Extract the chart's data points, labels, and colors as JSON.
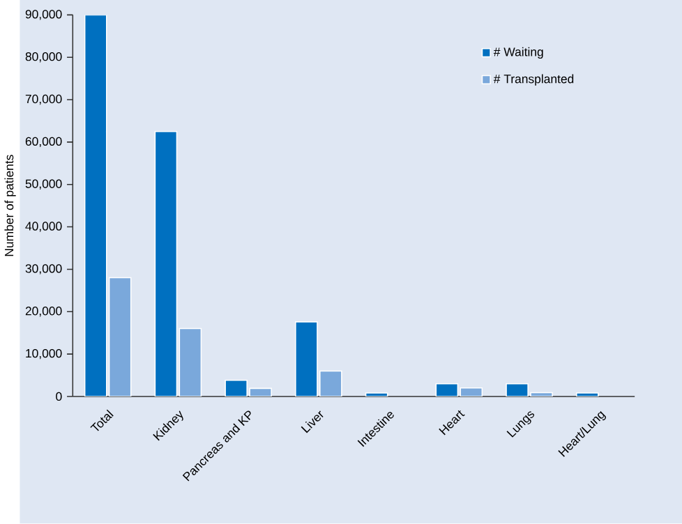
{
  "chart_data": {
    "type": "bar",
    "ylabel": "Number of patients",
    "categories": [
      "Total",
      "Kidney",
      "Pancreas and KP",
      "Liver",
      "Intestine",
      "Heart",
      "Lungs",
      "Heart/Lung"
    ],
    "series": [
      {
        "name": "# Waiting",
        "color": "#0070c0",
        "values": [
          90000,
          62500,
          3800,
          17600,
          800,
          3000,
          3000,
          800
        ]
      },
      {
        "name": "# Transplanted",
        "color": "#7aa8db",
        "values": [
          28000,
          16000,
          1900,
          6000,
          null,
          2000,
          900,
          null
        ]
      }
    ],
    "ylim": [
      0,
      90000
    ],
    "yticks": [
      {
        "value": 0,
        "label": "0"
      },
      {
        "value": 10000,
        "label": "10,000"
      },
      {
        "value": 20000,
        "label": "20,000"
      },
      {
        "value": 30000,
        "label": "30,000"
      },
      {
        "value": 40000,
        "label": "40,000"
      },
      {
        "value": 50000,
        "label": "50,000"
      },
      {
        "value": 60000,
        "label": "60,000"
      },
      {
        "value": 70000,
        "label": "70,000"
      },
      {
        "value": 80000,
        "label": "80,000"
      },
      {
        "value": 90000,
        "label": "90,000"
      }
    ],
    "legend": "top right",
    "grid": false
  }
}
